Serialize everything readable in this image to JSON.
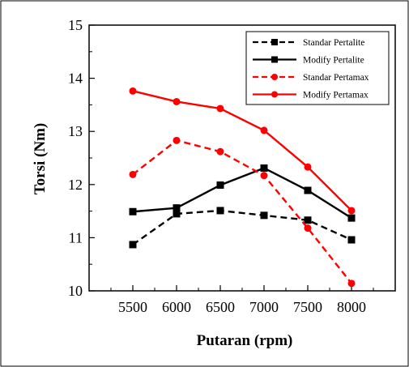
{
  "chart_data": {
    "type": "line",
    "title": "",
    "xlabel": "Putaran (rpm)",
    "ylabel": "Torsi (Nm)",
    "x": [
      5500,
      6000,
      6500,
      7000,
      7500,
      8000
    ],
    "xlim": [
      5000,
      8500
    ],
    "ylim": [
      10,
      15
    ],
    "yticks": [
      10,
      11,
      12,
      13,
      14,
      15
    ],
    "xticks": [
      5500,
      6000,
      6500,
      7000,
      7500,
      8000
    ],
    "grid": false,
    "legend_position": "top-right",
    "series": [
      {
        "name": "Standar Pertalite",
        "color": "#000000",
        "dash": true,
        "marker": "square",
        "values": [
          10.87,
          11.45,
          11.51,
          11.42,
          11.33,
          10.96
        ]
      },
      {
        "name": "Modify Pertalite",
        "color": "#000000",
        "dash": false,
        "marker": "square",
        "values": [
          11.49,
          11.56,
          11.99,
          12.31,
          11.89,
          11.37
        ]
      },
      {
        "name": "Standar Pertamax",
        "color": "#ff0000",
        "dash": true,
        "marker": "circle",
        "values": [
          12.19,
          12.83,
          12.62,
          12.17,
          11.18,
          10.14
        ]
      },
      {
        "name": "Modify Pertamax",
        "color": "#ff0000",
        "dash": false,
        "marker": "circle",
        "values": [
          13.76,
          13.56,
          13.43,
          13.02,
          12.33,
          11.51
        ]
      }
    ]
  }
}
